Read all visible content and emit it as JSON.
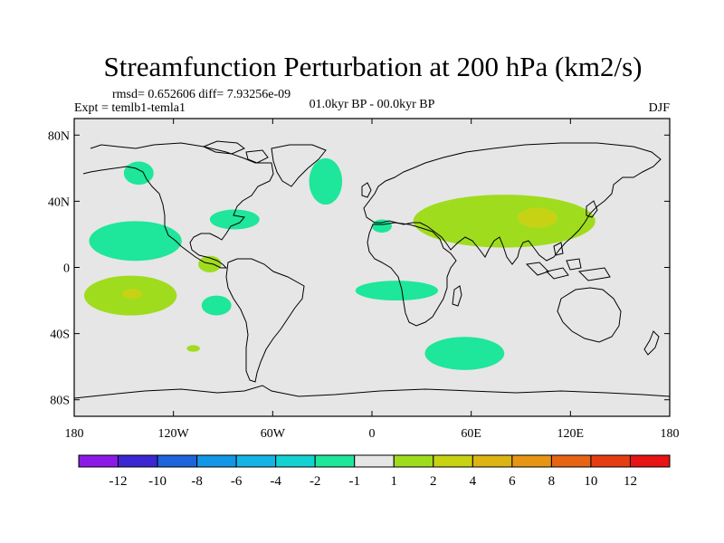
{
  "chart_data": {
    "type": "heatmap",
    "title": "Streamfunction Perturbation at 200 hPa (km2/s)",
    "stats_line": "rmsd= 0.652606 diff= 7.93256e-09",
    "left_subtitle": "Expt = temlb1-temla1",
    "center_subtitle": "01.0kyr BP - 00.0kyr BP",
    "right_subtitle": "DJF",
    "projection": "cylindrical equidistant, lon -180..180, lat -90..90",
    "xlim": [
      -180,
      180
    ],
    "ylim": [
      -90,
      90
    ],
    "x_ticks": [
      {
        "value": -180,
        "label": "180"
      },
      {
        "value": -120,
        "label": "120W"
      },
      {
        "value": -60,
        "label": "60W"
      },
      {
        "value": 0,
        "label": "0"
      },
      {
        "value": 60,
        "label": "60E"
      },
      {
        "value": 120,
        "label": "120E"
      },
      {
        "value": 180,
        "label": "180"
      }
    ],
    "y_ticks": [
      {
        "value": 80,
        "label": "80N"
      },
      {
        "value": 40,
        "label": "40N"
      },
      {
        "value": 0,
        "label": "0"
      },
      {
        "value": -40,
        "label": "40S"
      },
      {
        "value": -80,
        "label": "80S"
      }
    ],
    "neutral_range": [
      -1,
      1
    ],
    "neutral_color": "#e6e6e6",
    "colorbar": {
      "colors": [
        "#8c1ae6",
        "#3c28d2",
        "#1e64dc",
        "#1496e6",
        "#14b4e6",
        "#14d2d2",
        "#1ee69b",
        "#e6e6e6",
        "#a0dc1e",
        "#c8d214",
        "#dcb414",
        "#e69614",
        "#e66414",
        "#e63c14",
        "#e61414"
      ],
      "labels": [
        "-12",
        "-10",
        "-8",
        "-6",
        "-4",
        "-2",
        "-1",
        "1",
        "2",
        "4",
        "6",
        "8",
        "10",
        "12"
      ]
    },
    "anomalies": [
      {
        "name": "alaska-negative",
        "lon": -141,
        "lat": 57,
        "rlon": 9,
        "rlat": 7,
        "value": -1.5
      },
      {
        "name": "north-atlantic-negative",
        "lon": -28,
        "lat": 52,
        "rlon": 10,
        "rlat": 14,
        "value": -1.5
      },
      {
        "name": "east-us-negative",
        "lon": -83,
        "lat": 29,
        "rlon": 15,
        "rlat": 6,
        "value": -1.5
      },
      {
        "name": "sahara-negative",
        "lon": 6,
        "lat": 25,
        "rlon": 6,
        "rlat": 4,
        "value": -1.5
      },
      {
        "name": "north-pacific-negative",
        "lon": -143,
        "lat": 16,
        "rlon": 28,
        "rlat": 12,
        "value": -1.5
      },
      {
        "name": "central-america-positive",
        "lon": -98,
        "lat": 2,
        "rlon": 7,
        "rlat": 5,
        "value": 1.5
      },
      {
        "name": "south-pacific-positive",
        "lon": -146,
        "lat": -17,
        "rlon": 28,
        "rlat": 12,
        "value": 1.5
      },
      {
        "name": "south-pacific-core",
        "lon": -145,
        "lat": -16,
        "rlon": 6,
        "rlat": 3,
        "value": 3
      },
      {
        "name": "southeast-pacific-negative",
        "lon": -94,
        "lat": -23,
        "rlon": 9,
        "rlat": 6,
        "value": -1.5
      },
      {
        "name": "south-atlantic-negative",
        "lon": 15,
        "lat": -14,
        "rlon": 25,
        "rlat": 6,
        "value": -1.5
      },
      {
        "name": "southern-ocean-negative",
        "lon": 56,
        "lat": -52,
        "rlon": 24,
        "rlat": 10,
        "value": -1.5
      },
      {
        "name": "subantarctic-pacific-positive",
        "lon": -108,
        "lat": -49,
        "rlon": 4,
        "rlat": 2,
        "value": 1.5
      },
      {
        "name": "asia-positive",
        "lon": 80,
        "lat": 28,
        "rlon": 55,
        "rlat": 16,
        "value": 1.5
      },
      {
        "name": "asia-core",
        "lon": 100,
        "lat": 30,
        "rlon": 12,
        "rlat": 6,
        "value": 3
      }
    ]
  }
}
